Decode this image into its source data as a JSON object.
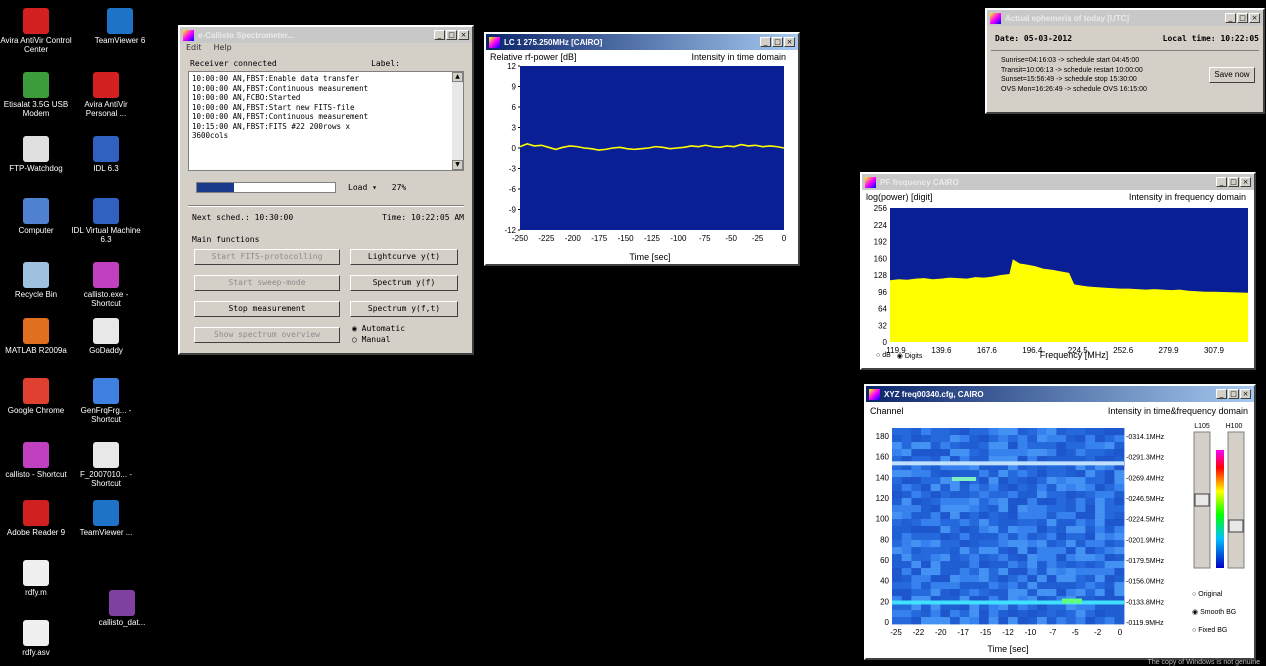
{
  "desktop_icons": [
    {
      "label": "Avira AntiVir Control Center",
      "icon": "avira-icon",
      "color": "#d42020"
    },
    {
      "label": "TeamViewer 6",
      "icon": "teamviewer-icon",
      "color": "#1e73c8"
    },
    {
      "label": "Etisalat 3.5G USB Modem",
      "icon": "modem-icon",
      "color": "#3c9c3c"
    },
    {
      "label": "Avira AntiVir Personal ...",
      "icon": "avira-icon",
      "color": "#d42020"
    },
    {
      "label": "FTP-Watchdog",
      "icon": "ftp-icon",
      "color": "#e0e0e0"
    },
    {
      "label": "IDL 6.3",
      "icon": "idl-icon",
      "color": "#3060c0"
    },
    {
      "label": "Computer",
      "icon": "computer-icon",
      "color": "#5080d0"
    },
    {
      "label": "IDL Virtual Machine 6.3",
      "icon": "idl-icon",
      "color": "#3060c0"
    },
    {
      "label": "Recycle Bin",
      "icon": "recycle-bin-icon",
      "color": "#a0c0e0"
    },
    {
      "label": "callisto.exe - Shortcut",
      "icon": "callisto-icon",
      "color": "#c040c0"
    },
    {
      "label": "MATLAB R2009a",
      "icon": "matlab-icon",
      "color": "#e07020"
    },
    {
      "label": "GoDaddy",
      "icon": "document-icon",
      "color": "#e8e8e8"
    },
    {
      "label": "Google Chrome",
      "icon": "chrome-icon",
      "color": "#e04030"
    },
    {
      "label": "GenFrqFrg... - Shortcut",
      "icon": "genfrq-icon",
      "color": "#4080e0"
    },
    {
      "label": "callisto - Shortcut",
      "icon": "callisto-icon",
      "color": "#c040c0"
    },
    {
      "label": "F_2007010... - Shortcut",
      "icon": "file-icon",
      "color": "#e8e8e8"
    },
    {
      "label": "Adobe Reader 9",
      "icon": "adobe-reader-icon",
      "color": "#d02020"
    },
    {
      "label": "TeamViewer ...",
      "icon": "teamviewer-icon",
      "color": "#1e73c8"
    },
    {
      "label": "rdfy.m",
      "icon": "document-icon",
      "color": "#f0f0f0"
    },
    {
      "label": "callisto_dat...",
      "icon": "rar-archive-icon",
      "color": "#8040a0"
    },
    {
      "label": "rdfy.asv",
      "icon": "document-icon",
      "color": "#f0f0f0"
    }
  ],
  "callisto": {
    "title": "e-Callisto Spectrometer...",
    "menu": [
      "Edit",
      "Help"
    ],
    "receiver_label": "Receiver connected",
    "label_header": "Label:",
    "log": [
      "10:00:00 AN,FBST:Enable data transfer",
      "10:00:00 AN,FBST:Continuous measurement",
      "10:00:00 AN,FCBO:Started",
      "10:00:00 AN,FBST:Start new FITS-file",
      "10:00:00 AN,FBST:Continuous measurement",
      "10:15:00 AN,FBST:FITS #22 200rows x",
      "3600cols"
    ],
    "load_label": "Load",
    "load_value": "27%",
    "progress": 0.27,
    "next_sched": "Next sched.: 10:30:00",
    "time": "Time: 10:22:05 AM",
    "main_functions": "Main functions",
    "buttons_left": [
      "Start FITS-protocolling",
      "Start sweep-mode",
      "Stop measurement",
      "Show spectrum overview"
    ],
    "buttons_left_disabled": [
      true,
      true,
      false,
      true
    ],
    "buttons_right": [
      "Lightcurve y(t)",
      "Spectrum y(f)",
      "Spectrum y(f,t)"
    ],
    "radio_automatic": "Automatic",
    "radio_manual": "Manual"
  },
  "light_window": {
    "title": "LC 1 275.250MHz [CAIRO]",
    "left_label": "Relative rf-power [dB]",
    "right_label": "Intensity in time domain",
    "xlabel": "Time [sec]"
  },
  "ephemeris_window": {
    "title": "Actual ephemeris of today [UTC]",
    "date": "Date: 05-03-2012",
    "local_time": "Local time: 10:22:05",
    "lines": [
      "Sunrise=04:16:03 -> schedule start 04:45:00",
      "Transit=10:06:13 -> schedule restart 10:00:00",
      "Sunset=15:56:49 -> schedule stop 15:30:00",
      "OVS Mon=16:26:49 -> schedule OVS 16:15:00"
    ],
    "save_button": "Save now"
  },
  "spectrum_window": {
    "title": "PF frequency CAIRO",
    "left_label": "log(power) [digit]",
    "right_label": "Intensity in frequency domain",
    "xlabel": "Frequency [MHz]",
    "check_db": "dB",
    "check_digits": "Digits"
  },
  "spectrogram_window": {
    "title": "XYZ freq00340.cfg, CAIRO",
    "left_label": "Channel",
    "right_label": "Intensity in time&frequency domain",
    "xlabel": "Time [sec]",
    "low_label": "L105",
    "high_label": "H100",
    "radio_original": "Original",
    "radio_smooth": "Smooth BG",
    "radio_fixed": "Fixed BG"
  },
  "footer_text": "The copy of Windows is not genuine",
  "chart_data": [
    {
      "type": "line",
      "title": "",
      "ylabel": "Relative rf-power [dB]",
      "xlabel": "Time [sec]",
      "xlim": [
        -250,
        0
      ],
      "ylim": [
        -12,
        12
      ],
      "xticks": [
        -250,
        -225,
        -200,
        -175,
        -150,
        -125,
        -100,
        -75,
        -50,
        -25,
        0
      ],
      "yticks": [
        12,
        9,
        6,
        3,
        0,
        -3,
        -6,
        -9,
        -12
      ],
      "series": [
        {
          "values": [
            0.2,
            0.6,
            0.3,
            0.4,
            0.1,
            -0.2,
            0.1,
            0.3,
            0.2,
            0.0,
            -0.1,
            -0.3,
            -0.2,
            0.0,
            0.1,
            -0.1,
            -0.2,
            -0.1,
            0.0,
            0.2,
            0.1,
            -0.1,
            0.0,
            0.1,
            0.3,
            0.2,
            0.4,
            0.2,
            0.1,
            0.3,
            0.2,
            0.5,
            0.3,
            0.4,
            0.2,
            0.3,
            0.2,
            0.0
          ]
        }
      ],
      "grid": false
    },
    {
      "type": "area",
      "title": "",
      "ylabel": "log(power) [digit]",
      "xlabel": "Frequency [MHz]",
      "xticks": [
        "119.9",
        "139.6",
        "167.6",
        "196.4",
        "224.5",
        "252.6",
        "279.9",
        "307.9"
      ],
      "yticks": [
        256,
        224,
        192,
        160,
        128,
        96,
        64,
        32,
        0
      ],
      "ylim": [
        0,
        256
      ],
      "x": [
        119.9,
        125,
        130,
        135,
        140,
        145,
        150,
        155,
        160,
        165,
        170,
        175,
        180,
        185,
        190,
        192,
        196,
        200,
        205,
        210,
        215,
        220,
        225,
        228,
        232,
        236,
        240,
        245,
        250,
        255,
        260,
        265,
        270,
        275,
        280,
        285,
        290,
        295,
        300,
        305,
        310,
        320,
        330
      ],
      "values": [
        118,
        120,
        119,
        121,
        122,
        120,
        121,
        123,
        122,
        121,
        124,
        123,
        125,
        128,
        130,
        158,
        150,
        148,
        145,
        140,
        138,
        135,
        132,
        110,
        108,
        106,
        105,
        104,
        103,
        102,
        102,
        101,
        100,
        101,
        100,
        99,
        100,
        98,
        97,
        96,
        96,
        95,
        94
      ],
      "grid": false
    },
    {
      "type": "heatmap",
      "title": "",
      "ylabel": "Channel",
      "xlabel": "Time [sec]",
      "xticks": [
        -25,
        -22,
        -20,
        -17,
        -15,
        -12,
        -10,
        -7,
        -5,
        -2,
        0
      ],
      "yticks": [
        180,
        160,
        140,
        120,
        100,
        80,
        60,
        40,
        20,
        0
      ],
      "right_ticks": [
        "0314.1MHz",
        "0291.3MHz",
        "0269.4MHz",
        "0246.5MHz",
        "0224.5MHz",
        "0201.9MHz",
        "0179.5MHz",
        "0156.0MHz",
        "0133.8MHz",
        "0119.9MHz"
      ]
    }
  ]
}
